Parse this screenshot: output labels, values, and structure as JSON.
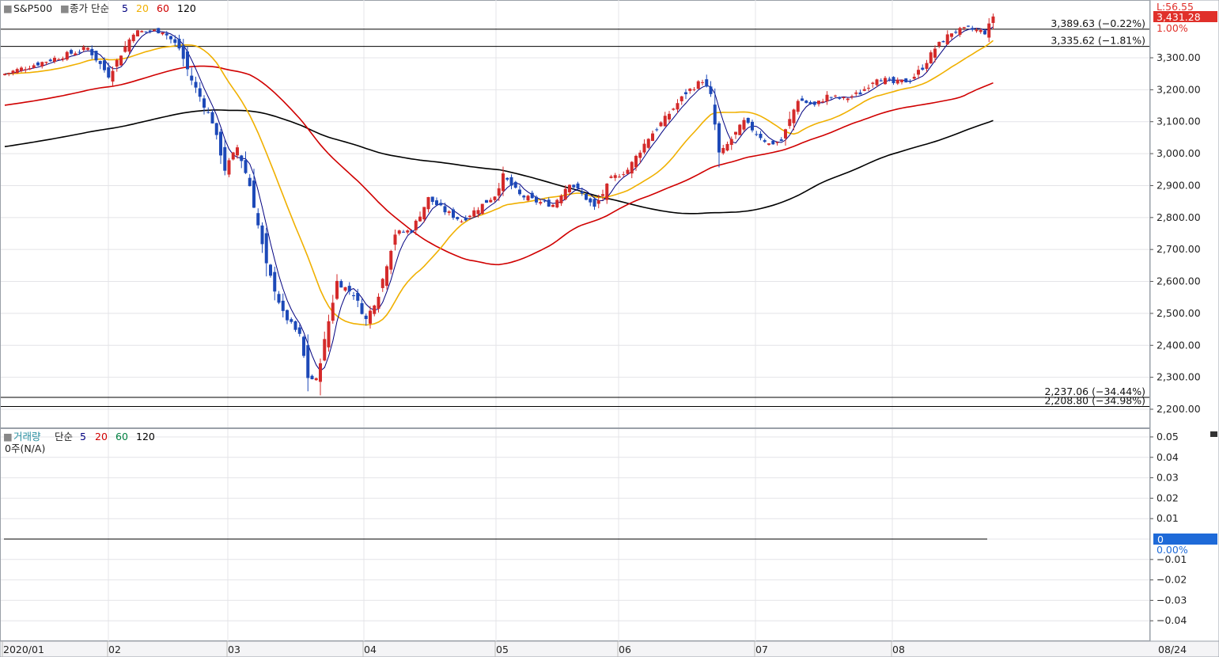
{
  "legend": {
    "price": {
      "marker": "■",
      "symbol": "S&P500",
      "marker2": "■",
      "series_label": "종가 단순",
      "ma_periods": [
        "5",
        "20",
        "60",
        "120"
      ],
      "ma_colors": [
        "#000080",
        "#f0b000",
        "#d00000",
        "#000000"
      ]
    },
    "volume": {
      "marker": "■",
      "symbol": "거래량",
      "series_label": "단순",
      "ma_periods": [
        "5",
        "20",
        "60",
        "120"
      ],
      "ma_colors": [
        "#000080",
        "#d00000",
        "#008040",
        "#000000"
      ],
      "value_text": "0주(N/A)"
    }
  },
  "right_panel": {
    "top_label": "L:56.55",
    "last_price": "3,431.28",
    "last_price_pct": "1.00%",
    "volume_last": "0",
    "volume_pct": "0.00%"
  },
  "colors": {
    "up": "#d42a2a",
    "down": "#1d49b8",
    "accent": "#e0302a",
    "blue_badge": "#1e6ad8"
  },
  "chart_data": [
    {
      "type": "candlestick",
      "title": "S&P500",
      "ylim": [
        2185,
        3440
      ],
      "yticks": [
        2200,
        2300,
        2400,
        2500,
        2600,
        2700,
        2800,
        2900,
        3000,
        3100,
        3200,
        3300
      ],
      "ytick_labels": [
        "2,200.00",
        "2,300.00",
        "2,400.00",
        "2,500.00",
        "2,600.00",
        "2,700.00",
        "2,800.00",
        "2,900.00",
        "3,000.00",
        "3,100.00",
        "3,200.00",
        "3,300.00"
      ],
      "month_labels": [
        "2020/01",
        "02",
        "03",
        "04",
        "05",
        "06",
        "07",
        "08"
      ],
      "last_date_label": "08/24",
      "reference_lines": [
        {
          "value": 3389.63,
          "label": "3,389.63 (−0.22%)"
        },
        {
          "value": 3335.62,
          "label": "3,335.62 (−1.81%)"
        },
        {
          "value": 2237.06,
          "label": "2,237.06 (−34.44%)"
        },
        {
          "value": 2208.8,
          "label": "2,208.80 (−34.98%)"
        }
      ],
      "anchors": [
        [
          0,
          3250
        ],
        [
          10,
          3290
        ],
        [
          20,
          3330
        ],
        [
          25,
          3245
        ],
        [
          31,
          3380
        ],
        [
          38,
          3385
        ],
        [
          42,
          3330
        ],
        [
          45,
          3230
        ],
        [
          50,
          3100
        ],
        [
          53,
          2950
        ],
        [
          56,
          3020
        ],
        [
          59,
          2900
        ],
        [
          63,
          2650
        ],
        [
          67,
          2500
        ],
        [
          71,
          2430
        ],
        [
          73,
          2300
        ],
        [
          75,
          2290
        ],
        [
          80,
          2600
        ],
        [
          84,
          2560
        ],
        [
          87,
          2480
        ],
        [
          90,
          2560
        ],
        [
          94,
          2750
        ],
        [
          98,
          2760
        ],
        [
          102,
          2860
        ],
        [
          106,
          2820
        ],
        [
          110,
          2790
        ],
        [
          114,
          2830
        ],
        [
          118,
          2870
        ],
        [
          120,
          2930
        ],
        [
          124,
          2870
        ],
        [
          128,
          2850
        ],
        [
          132,
          2840
        ],
        [
          136,
          2910
        ],
        [
          140,
          2860
        ],
        [
          142,
          2830
        ],
        [
          146,
          2920
        ],
        [
          150,
          2950
        ],
        [
          155,
          3050
        ],
        [
          159,
          3110
        ],
        [
          164,
          3190
        ],
        [
          168,
          3230
        ],
        [
          170,
          3180
        ],
        [
          172,
          3000
        ],
        [
          173,
          3010
        ],
        [
          178,
          3100
        ],
        [
          184,
          3030
        ],
        [
          187,
          3040
        ],
        [
          191,
          3170
        ],
        [
          195,
          3150
        ],
        [
          198,
          3180
        ],
        [
          202,
          3170
        ],
        [
          206,
          3190
        ],
        [
          210,
          3240
        ],
        [
          214,
          3220
        ],
        [
          218,
          3230
        ],
        [
          221,
          3270
        ],
        [
          224,
          3330
        ],
        [
          228,
          3380
        ],
        [
          232,
          3390
        ],
        [
          236,
          3380
        ],
        [
          237,
          3400
        ],
        [
          238,
          3431
        ]
      ],
      "moving_averages": [
        {
          "period": "5",
          "color": "#000080"
        },
        {
          "period": "20",
          "color": "#f0b000"
        },
        {
          "period": "60",
          "color": "#d00000"
        },
        {
          "period": "120",
          "color": "#000000"
        }
      ]
    },
    {
      "type": "bar",
      "title": "거래량",
      "ylim": [
        -0.05,
        0.05
      ],
      "yticks": [
        0.05,
        0.04,
        0.03,
        0.02,
        0.01,
        0,
        -0.01,
        -0.02,
        -0.03,
        -0.04
      ],
      "ytick_labels": [
        "0.05",
        "0.04",
        "0.03",
        "0.02",
        "0.01",
        "0",
        "−0.01",
        "−0.02",
        "−0.03",
        "−0.04"
      ],
      "values": []
    }
  ]
}
